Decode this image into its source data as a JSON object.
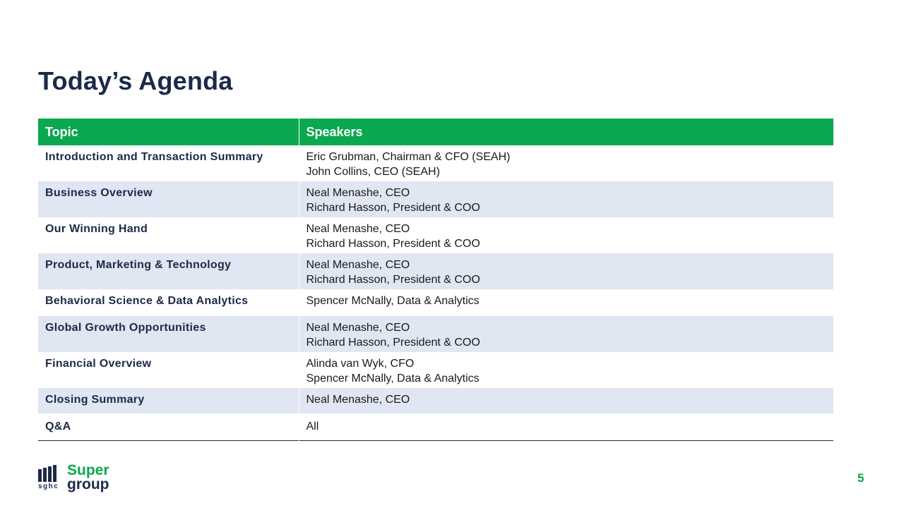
{
  "slide": {
    "title": "Today’s Agenda",
    "page_number": "5"
  },
  "table": {
    "headers": {
      "topic": "Topic",
      "speakers": "Speakers"
    },
    "rows": [
      {
        "topic": "Introduction and Transaction  Summary",
        "speakers": [
          "Eric Grubman,  Chairman  & CFO  (SEAH)",
          "John Collins,  CEO  (SEAH)"
        ]
      },
      {
        "topic": "Business Overview",
        "speakers": [
          "Neal Menashe,  CEO",
          "Richard Hasson,  President  & COO"
        ]
      },
      {
        "topic": "Our Winning  Hand",
        "speakers": [
          "Neal Menashe,  CEO",
          "Richard Hasson,  President  & COO"
        ]
      },
      {
        "topic": "Product,  Marketing  & Technology",
        "speakers": [
          "Neal Menashe,  CEO",
          "Richard Hasson,  President  & COO"
        ]
      },
      {
        "topic": "Behavioral  Science & Data Analytics",
        "speakers": [
          "Spencer  McNally,  Data  & Analytics"
        ]
      },
      {
        "topic": "Global  Growth  Opportunities",
        "speakers": [
          "Neal Menashe,  CEO",
          "Richard Hasson,  President  & COO"
        ]
      },
      {
        "topic": "Financial  Overview",
        "speakers": [
          "Alinda  van  Wyk, CFO",
          "Spencer  McNally,  Data  & Analytics"
        ]
      },
      {
        "topic": "Closing Summary",
        "speakers": [
          "Neal Menashe,  CEO"
        ]
      },
      {
        "topic": "Q&A",
        "speakers": [
          "All"
        ]
      }
    ]
  },
  "logo": {
    "mark_text": "sghc",
    "word_top": "Super",
    "word_bottom": "group",
    "colors": {
      "green": "#0aa84f",
      "navy": "#1c2a48"
    }
  },
  "colors": {
    "header_bg": "#0aa84f",
    "alt_row_bg": "#e0e6f2",
    "title": "#1c2a48"
  }
}
